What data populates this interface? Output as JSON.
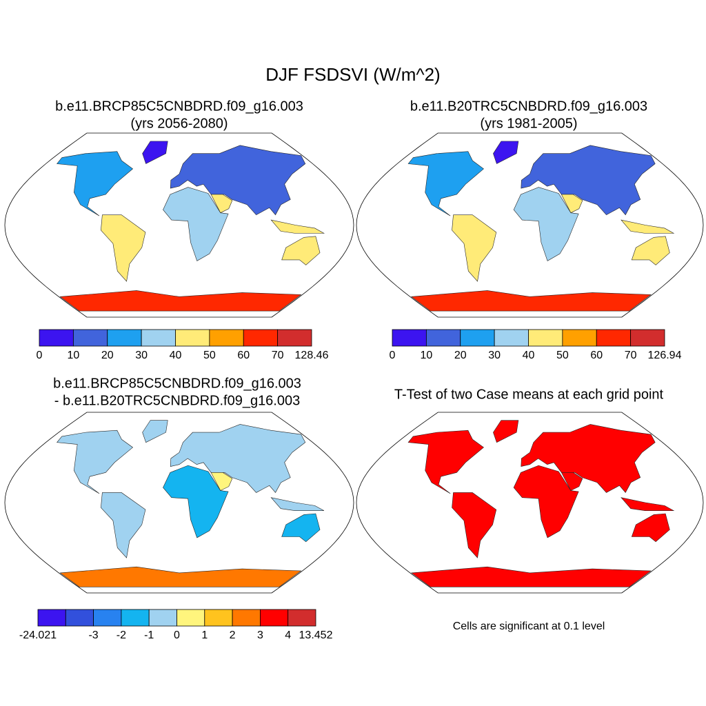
{
  "title": "DJF FSDSVI (W/m^2)",
  "panels": [
    {
      "title": [
        "b.e11.BRCP85C5CNBDRD.f09_g16.003",
        "(yrs 2056-2080)"
      ],
      "colorbar": {
        "colors": [
          "#3c14f0",
          "#4164dc",
          "#1ea0f0",
          "#a0d2f0",
          "#ffeb78",
          "#ffa000",
          "#ff2800",
          "#d22d2d"
        ],
        "labels": [
          0,
          10,
          20,
          30,
          40,
          50,
          60,
          70,
          128.46
        ]
      }
    },
    {
      "title": [
        "b.e11.B20TRC5CNBDRD.f09_g16.003",
        "(yrs 1981-2005)"
      ],
      "colorbar": {
        "colors": [
          "#3c14f0",
          "#4164dc",
          "#1ea0f0",
          "#a0d2f0",
          "#ffeb78",
          "#ffa000",
          "#ff2800",
          "#d22d2d"
        ],
        "labels": [
          0,
          10,
          20,
          30,
          40,
          50,
          60,
          70,
          126.94
        ]
      }
    },
    {
      "title": [
        "b.e11.BRCP85C5CNBDRD.f09_g16.003",
        "- b.e11.B20TRC5CNBDRD.f09_g16.003"
      ],
      "colorbar": {
        "colors": [
          "#3c14f0",
          "#3250dc",
          "#2882f0",
          "#14b4f0",
          "#a0d2f0",
          "#fff57d",
          "#ffc31e",
          "#ff7800",
          "#ff0000",
          "#d22d2d"
        ],
        "labels": [
          -24.021,
          null,
          -3,
          -2,
          -1,
          0,
          1,
          2,
          3,
          4,
          13.452
        ]
      }
    },
    {
      "title": [
        "T-Test of two Case means at each grid point"
      ],
      "note": "Cells are significant at 0.1 level"
    }
  ]
}
